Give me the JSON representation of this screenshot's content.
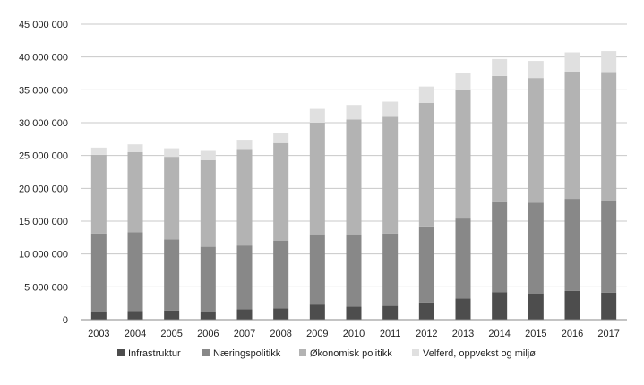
{
  "chart_data": {
    "type": "bar",
    "stacked": true,
    "title": "",
    "xlabel": "",
    "ylabel": "",
    "ylim": [
      0,
      45000000
    ],
    "y_ticks": [
      0,
      5000000,
      10000000,
      15000000,
      20000000,
      25000000,
      30000000,
      35000000,
      40000000,
      45000000
    ],
    "y_tick_labels": [
      "0",
      "5 000 000",
      "10 000 000",
      "15 000 000",
      "20 000 000",
      "25 000 000",
      "30 000 000",
      "35 000 000",
      "40 000 000",
      "45 000 000"
    ],
    "grid": true,
    "legend_position": "bottom",
    "categories": [
      "2003",
      "2004",
      "2005",
      "2006",
      "2007",
      "2008",
      "2009",
      "2010",
      "2011",
      "2012",
      "2013",
      "2014",
      "2015",
      "2016",
      "2017"
    ],
    "series": [
      {
        "name": "Infrastruktur",
        "color": "#4d4d4d",
        "values": [
          1100000,
          1300000,
          1400000,
          1100000,
          1600000,
          1700000,
          2300000,
          2000000,
          2100000,
          2600000,
          3200000,
          4200000,
          4000000,
          4400000,
          4100000
        ]
      },
      {
        "name": "Næringspolitikk",
        "color": "#888888",
        "values": [
          12000000,
          12000000,
          10800000,
          10000000,
          9700000,
          10300000,
          10700000,
          11000000,
          11000000,
          11600000,
          12200000,
          13700000,
          13800000,
          14000000,
          13900000
        ]
      },
      {
        "name": "Økonomisk politikk",
        "color": "#b3b3b3",
        "values": [
          12000000,
          12200000,
          12600000,
          13200000,
          14700000,
          14900000,
          17000000,
          17500000,
          17800000,
          18800000,
          19600000,
          19200000,
          19000000,
          19400000,
          19700000
        ]
      },
      {
        "name": "Velferd, oppvekst og miljø",
        "color": "#e0e0e0",
        "values": [
          1100000,
          1200000,
          1300000,
          1400000,
          1400000,
          1500000,
          2100000,
          2200000,
          2300000,
          2500000,
          2500000,
          2600000,
          2600000,
          2900000,
          3200000
        ]
      }
    ]
  }
}
